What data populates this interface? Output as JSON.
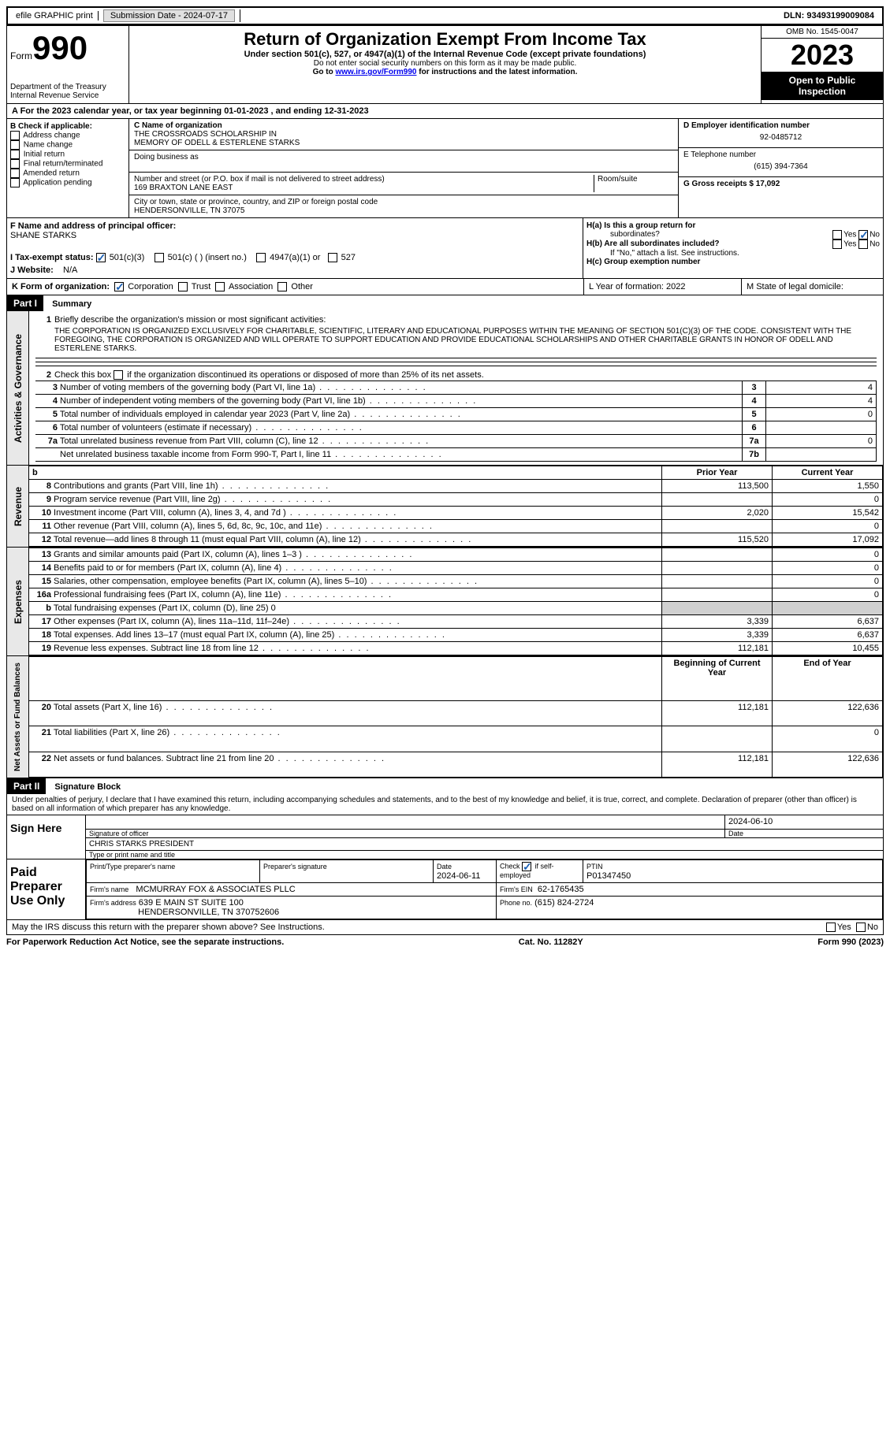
{
  "topbar": {
    "efile": "efile GRAPHIC print",
    "submission_label": "Submission Date - 2024-07-17",
    "dln": "DLN: 93493199009084"
  },
  "header": {
    "form_prefix": "Form",
    "form_number": "990",
    "dept": "Department of the Treasury",
    "dept2": "Internal Revenue Service",
    "title": "Return of Organization Exempt From Income Tax",
    "subtitle": "Under section 501(c), 527, or 4947(a)(1) of the Internal Revenue Code (except private foundations)",
    "warning": "Do not enter social security numbers on this form as it may be made public.",
    "goto_pre": "Go to ",
    "goto_link": "www.irs.gov/Form990",
    "goto_post": " for instructions and the latest information.",
    "omb": "OMB No. 1545-0047",
    "year": "2023",
    "inspection": "Open to Public Inspection"
  },
  "section_a": {
    "line_a": "A For the 2023 calendar year, or tax year beginning 01-01-2023   , and ending 12-31-2023",
    "b_header": "B Check if applicable:",
    "b_opts": [
      "Address change",
      "Name change",
      "Initial return",
      "Final return/terminated",
      "Amended return",
      "Application pending"
    ],
    "c_label": "C Name of organization",
    "c_name1": "THE CROSSROADS SCHOLARSHIP IN",
    "c_name2": "MEMORY OF ODELL & ESTERLENE STARKS",
    "dba_label": "Doing business as",
    "street_label": "Number and street (or P.O. box if mail is not delivered to street address)",
    "room_label": "Room/suite",
    "street": "169 BRAXTON LANE EAST",
    "city_label": "City or town, state or province, country, and ZIP or foreign postal code",
    "city": "HENDERSONVILLE, TN  37075",
    "d_label": "D Employer identification number",
    "d_ein": "92-0485712",
    "e_label": "E Telephone number",
    "e_phone": "(615) 394-7364",
    "g_label": "G Gross receipts $ 17,092",
    "f_label": "F  Name and address of principal officer:",
    "f_name": "SHANE STARKS",
    "ha_label": "H(a)  Is this a group return for",
    "ha_label2": "subordinates?",
    "hb_label": "H(b)  Are all subordinates included?",
    "hb_note": "If \"No,\" attach a list. See instructions.",
    "hc_label": "H(c)  Group exemption number",
    "yes": "Yes",
    "no": "No",
    "i_label": "I   Tax-exempt status:",
    "i_501c3": "501(c)(3)",
    "i_501c": "501(c) (  ) (insert no.)",
    "i_4947": "4947(a)(1) or",
    "i_527": "527",
    "j_label": "J   Website:",
    "j_val": "N/A",
    "k_label": "K Form of organization:",
    "k_corp": "Corporation",
    "k_trust": "Trust",
    "k_assoc": "Association",
    "k_other": "Other",
    "l_label": "L Year of formation: 2022",
    "m_label": "M State of legal domicile:"
  },
  "part1": {
    "header": "Part I",
    "title": "Summary",
    "vert_gov": "Activities & Governance",
    "vert_rev": "Revenue",
    "vert_exp": "Expenses",
    "vert_net": "Net Assets or Fund Balances",
    "line1_label": "Briefly describe the organization's mission or most significant activities:",
    "line1_text": "THE CORPORATION IS ORGANIZED EXCLUSIVELY FOR CHARITABLE, SCIENTIFIC, LITERARY AND EDUCATIONAL PURPOSES WITHIN THE MEANING OF SECTION 501(C)(3) OF THE CODE. CONSISTENT WITH THE FOREGOING, THE CORPORATION IS ORGANIZED AND WILL OPERATE TO SUPPORT EDUCATION AND PROVIDE EDUCATIONAL SCHOLARSHIPS AND OTHER CHARITABLE GRANTS IN HONOR OF ODELL AND ESTERLENE STARKS.",
    "line2": "Check this box        if the organization discontinued its operations or disposed of more than 25% of its net assets.",
    "lines_gov": [
      {
        "num": "3",
        "text": "Number of voting members of the governing body (Part VI, line 1a)",
        "box": "3",
        "val": "4"
      },
      {
        "num": "4",
        "text": "Number of independent voting members of the governing body (Part VI, line 1b)",
        "box": "4",
        "val": "4"
      },
      {
        "num": "5",
        "text": "Total number of individuals employed in calendar year 2023 (Part V, line 2a)",
        "box": "5",
        "val": "0"
      },
      {
        "num": "6",
        "text": "Total number of volunteers (estimate if necessary)",
        "box": "6",
        "val": ""
      },
      {
        "num": "7a",
        "text": "Total unrelated business revenue from Part VIII, column (C), line 12",
        "box": "7a",
        "val": "0"
      },
      {
        "num": "",
        "text": "Net unrelated business taxable income from Form 990-T, Part I, line 11",
        "box": "7b",
        "val": ""
      }
    ],
    "prior_year": "Prior Year",
    "current_year": "Current Year",
    "lines_rev": [
      {
        "num": "8",
        "text": "Contributions and grants (Part VIII, line 1h)",
        "prior": "113,500",
        "curr": "1,550"
      },
      {
        "num": "9",
        "text": "Program service revenue (Part VIII, line 2g)",
        "prior": "",
        "curr": "0"
      },
      {
        "num": "10",
        "text": "Investment income (Part VIII, column (A), lines 3, 4, and 7d )",
        "prior": "2,020",
        "curr": "15,542"
      },
      {
        "num": "11",
        "text": "Other revenue (Part VIII, column (A), lines 5, 6d, 8c, 9c, 10c, and 11e)",
        "prior": "",
        "curr": "0"
      },
      {
        "num": "12",
        "text": "Total revenue—add lines 8 through 11 (must equal Part VIII, column (A), line 12)",
        "prior": "115,520",
        "curr": "17,092"
      }
    ],
    "lines_exp": [
      {
        "num": "13",
        "text": "Grants and similar amounts paid (Part IX, column (A), lines 1–3 )",
        "prior": "",
        "curr": "0"
      },
      {
        "num": "14",
        "text": "Benefits paid to or for members (Part IX, column (A), line 4)",
        "prior": "",
        "curr": "0"
      },
      {
        "num": "15",
        "text": "Salaries, other compensation, employee benefits (Part IX, column (A), lines 5–10)",
        "prior": "",
        "curr": "0"
      },
      {
        "num": "16a",
        "text": "Professional fundraising fees (Part IX, column (A), line 11e)",
        "prior": "",
        "curr": "0"
      },
      {
        "num": "b",
        "text": "Total fundraising expenses (Part IX, column (D), line 25) 0",
        "prior": "GRAY",
        "curr": "GRAY"
      },
      {
        "num": "17",
        "text": "Other expenses (Part IX, column (A), lines 11a–11d, 11f–24e)",
        "prior": "3,339",
        "curr": "6,637"
      },
      {
        "num": "18",
        "text": "Total expenses. Add lines 13–17 (must equal Part IX, column (A), line 25)",
        "prior": "3,339",
        "curr": "6,637"
      },
      {
        "num": "19",
        "text": "Revenue less expenses. Subtract line 18 from line 12",
        "prior": "112,181",
        "curr": "10,455"
      }
    ],
    "begin_year": "Beginning of Current Year",
    "end_year": "End of Year",
    "lines_net": [
      {
        "num": "20",
        "text": "Total assets (Part X, line 16)",
        "prior": "112,181",
        "curr": "122,636"
      },
      {
        "num": "21",
        "text": "Total liabilities (Part X, line 26)",
        "prior": "",
        "curr": "0"
      },
      {
        "num": "22",
        "text": "Net assets or fund balances. Subtract line 21 from line 20",
        "prior": "112,181",
        "curr": "122,636"
      }
    ]
  },
  "part2": {
    "header": "Part II",
    "title": "Signature Block",
    "declaration": "Under penalties of perjury, I declare that I have examined this return, including accompanying schedules and statements, and to the best of my knowledge and belief, it is true, correct, and complete. Declaration of preparer (other than officer) is based on all information of which preparer has any knowledge.",
    "sign_here": "Sign Here",
    "sig_date": "2024-06-10",
    "sig_label": "Signature of officer",
    "date_label": "Date",
    "officer": "CHRIS STARKS PRESIDENT",
    "type_label": "Type or print name and title",
    "paid_prep": "Paid Preparer Use Only",
    "prep_name_label": "Print/Type preparer's name",
    "prep_sig_label": "Preparer's signature",
    "prep_date_label": "Date",
    "prep_date": "2024-06-11",
    "prep_check_label": "Check         if self-employed",
    "ptin_label": "PTIN",
    "ptin": "P01347450",
    "firm_name_label": "Firm's name",
    "firm_name": "MCMURRAY FOX & ASSOCIATES PLLC",
    "firm_ein_label": "Firm's EIN",
    "firm_ein": "62-1765435",
    "firm_addr_label": "Firm's address",
    "firm_addr1": "639 E MAIN ST SUITE 100",
    "firm_addr2": "HENDERSONVILLE, TN  370752606",
    "phone_label": "Phone no.",
    "phone": "(615) 824-2724",
    "discuss": "May the IRS discuss this return with the preparer shown above? See Instructions."
  },
  "footer": {
    "paperwork": "For Paperwork Reduction Act Notice, see the separate instructions.",
    "cat": "Cat. No. 11282Y",
    "form": "Form 990 (2023)"
  }
}
